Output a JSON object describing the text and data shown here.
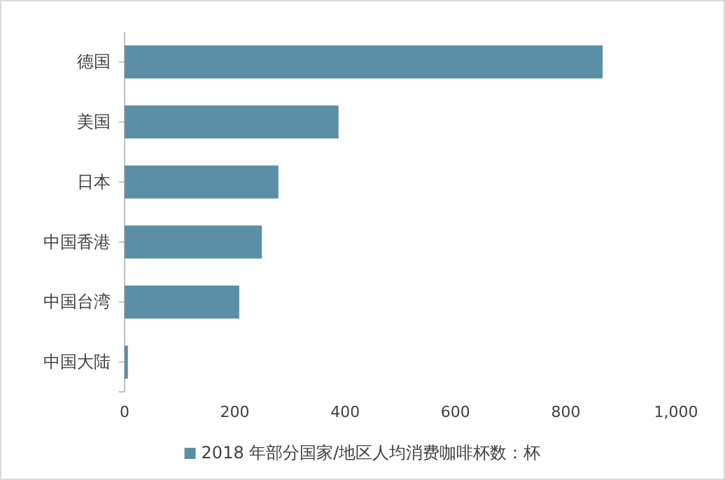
{
  "chart_data": {
    "type": "bar",
    "orientation": "horizontal",
    "categories": [
      "德国",
      "美国",
      "日本",
      "中国香港",
      "中国台湾",
      "中国大陆"
    ],
    "series": [
      {
        "name": "2018 年部分国家/地区人均消费咖啡杯数：杯",
        "color": "#5b8fa5",
        "values": [
          867,
          388,
          279,
          249,
          208,
          6
        ]
      }
    ],
    "xlim": [
      0,
      1000
    ],
    "xticks": [
      0,
      200,
      400,
      600,
      800,
      {
        "value": 1000,
        "label": "1,000"
      }
    ],
    "grid": false,
    "legend": "bottom"
  }
}
